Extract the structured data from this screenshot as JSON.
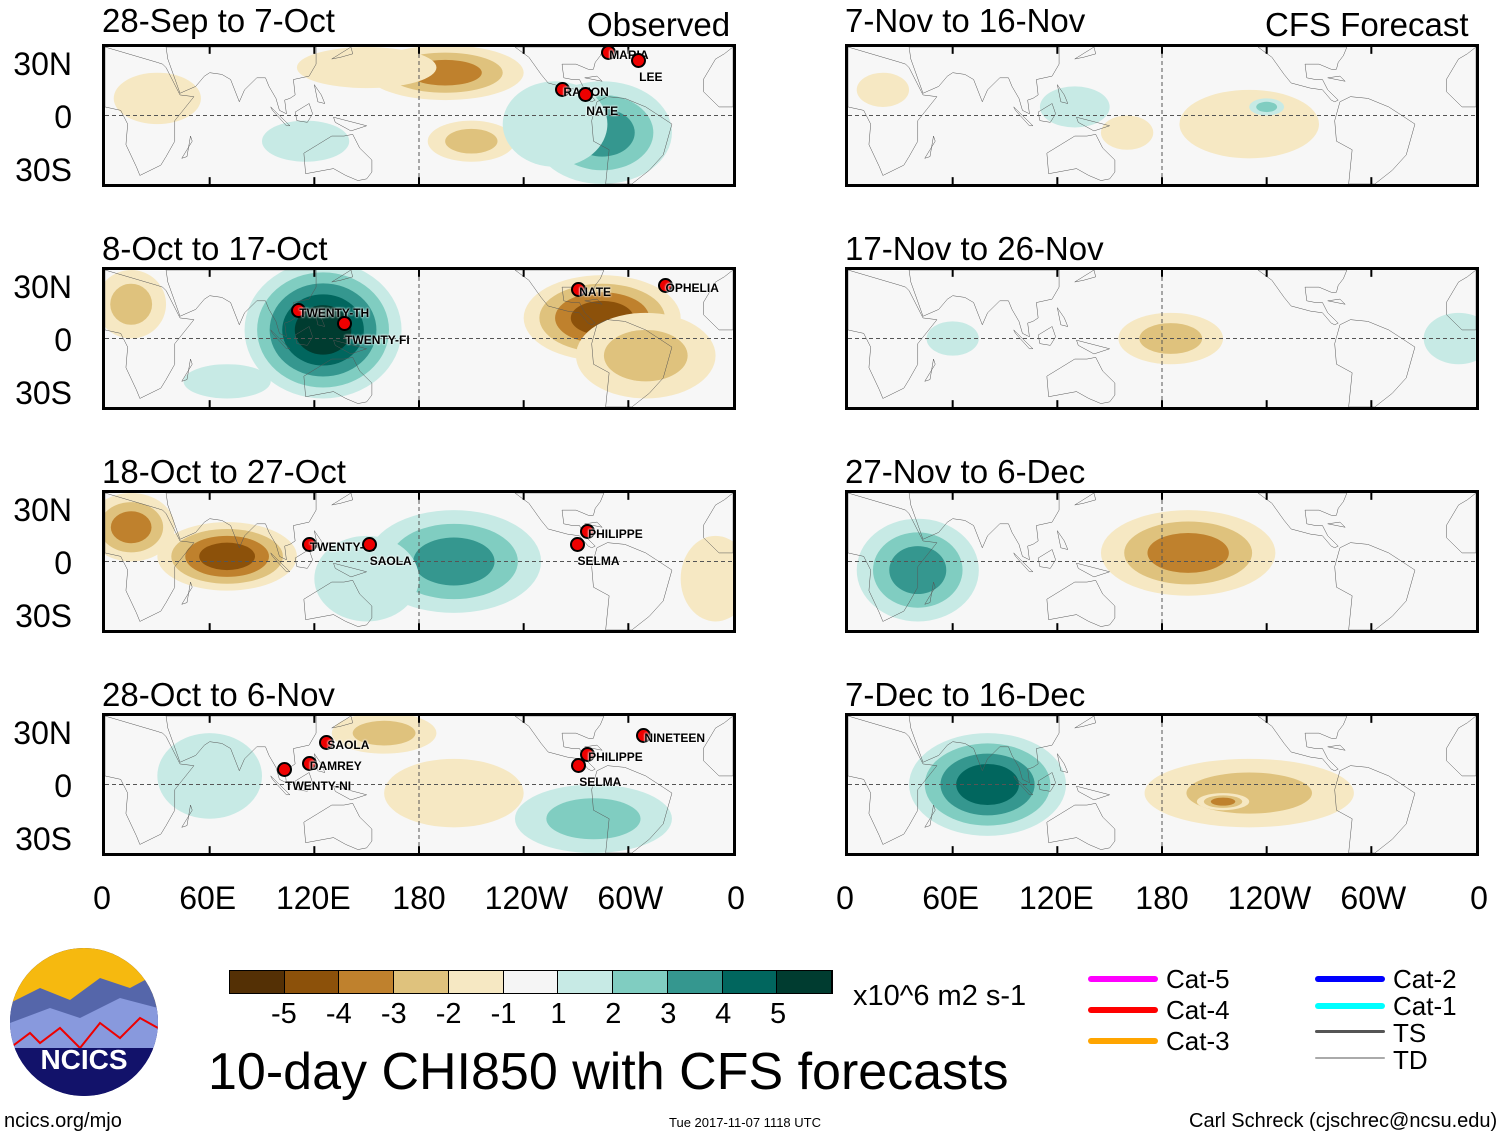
{
  "header": {
    "observed_label": "Observed",
    "forecast_label": "CFS Forecast"
  },
  "axes": {
    "lat_labels": [
      "30N",
      "0",
      "30S"
    ],
    "lon_labels": [
      "0",
      "60E",
      "120E",
      "180",
      "120W",
      "60W",
      "0"
    ]
  },
  "colorbar": {
    "colors": [
      "#543005",
      "#8c510a",
      "#bf812d",
      "#dfc27d",
      "#f6e8c3",
      "#f5f5f5",
      "#c7eae5",
      "#80cdc1",
      "#35978f",
      "#01665e",
      "#003c30"
    ],
    "labels": [
      "-5",
      "-4",
      "-3",
      "-2",
      "-1",
      "1",
      "2",
      "3",
      "4",
      "5"
    ],
    "units": "x10^6 m2 s-1"
  },
  "title": "10-day CHI850 with CFS forecasts",
  "footer": {
    "left": "ncics.org/mjo",
    "center": "Tue 2017-11-07 1118 UTC",
    "right": "Carl Schreck (cjschrec@ncsu.edu)"
  },
  "logo_text": "NCICS",
  "legend": [
    {
      "label": "Cat-5",
      "color": "#ff00ff"
    },
    {
      "label": "Cat-4",
      "color": "#ff0000"
    },
    {
      "label": "Cat-3",
      "color": "#ffa500"
    },
    {
      "label": "Cat-2",
      "color": "#0000ff"
    },
    {
      "label": "Cat-1",
      "color": "#00ffff"
    },
    {
      "label": "TS",
      "color": "#555555"
    },
    {
      "label": "TD",
      "color": "#aaaaaa"
    }
  ],
  "chart_data": [
    {
      "type": "heatmap",
      "title": "28-Sep to 7-Oct",
      "kind": "observed",
      "xlim": [
        0,
        360
      ],
      "ylim": [
        -40,
        40
      ],
      "anomalies": [
        {
          "lon": 195,
          "lat": 25,
          "value": -3,
          "rlon": 45,
          "rlat": 16
        },
        {
          "lon": 150,
          "lat": 28,
          "value": -1,
          "rlon": 40,
          "rlat": 12
        },
        {
          "lon": 30,
          "lat": 10,
          "value": -1,
          "rlon": 25,
          "rlat": 15
        },
        {
          "lon": 210,
          "lat": -15,
          "value": -2,
          "rlon": 25,
          "rlat": 12
        },
        {
          "lon": 285,
          "lat": -10,
          "value": 3,
          "rlon": 40,
          "rlat": 30
        },
        {
          "lon": 258,
          "lat": -5,
          "value": 1,
          "rlon": 30,
          "rlat": 25
        },
        {
          "lon": 115,
          "lat": -15,
          "value": 1,
          "rlon": 25,
          "rlat": 12
        }
      ],
      "storms": [
        {
          "name": "MARIA",
          "lon": 288,
          "lat": 33
        },
        {
          "name": "LEE",
          "lon": 305,
          "lat": 28
        },
        {
          "name": "RAMON",
          "lon": 262,
          "lat": 12
        },
        {
          "name": "NATE",
          "lon": 275,
          "lat": 9
        }
      ]
    },
    {
      "type": "heatmap",
      "title": "8-Oct to 17-Oct",
      "kind": "observed",
      "xlim": [
        0,
        360
      ],
      "ylim": [
        -40,
        40
      ],
      "anomalies": [
        {
          "lon": 125,
          "lat": 5,
          "value": 5,
          "rlon": 45,
          "rlat": 40
        },
        {
          "lon": 70,
          "lat": -25,
          "value": 1,
          "rlon": 25,
          "rlat": 10
        },
        {
          "lon": 285,
          "lat": 12,
          "value": -4,
          "rlon": 45,
          "rlat": 25
        },
        {
          "lon": 310,
          "lat": -10,
          "value": -2,
          "rlon": 40,
          "rlat": 25
        },
        {
          "lon": 15,
          "lat": 20,
          "value": -2,
          "rlon": 20,
          "rlat": 20
        }
      ],
      "storms": [
        {
          "name": "NATE",
          "lon": 271,
          "lat": 25
        },
        {
          "name": "OPHELIA",
          "lon": 320,
          "lat": 27
        },
        {
          "name": "TWENTY-TH",
          "lon": 112,
          "lat": 13
        },
        {
          "name": "TWENTY-FI",
          "lon": 138,
          "lat": 6
        }
      ]
    },
    {
      "type": "heatmap",
      "title": "18-Oct to 27-Oct",
      "kind": "observed",
      "xlim": [
        0,
        360
      ],
      "ylim": [
        -40,
        40
      ],
      "anomalies": [
        {
          "lon": 70,
          "lat": 3,
          "value": -4,
          "rlon": 40,
          "rlat": 20
        },
        {
          "lon": 15,
          "lat": 20,
          "value": -3,
          "rlon": 25,
          "rlat": 20
        },
        {
          "lon": 200,
          "lat": 0,
          "value": 3,
          "rlon": 50,
          "rlat": 30
        },
        {
          "lon": 150,
          "lat": -10,
          "value": 1,
          "rlon": 30,
          "rlat": 25
        },
        {
          "lon": 350,
          "lat": -10,
          "value": -1,
          "rlon": 20,
          "rlat": 25
        }
      ],
      "storms": [
        {
          "name": "TWENTY-SI",
          "lon": 118,
          "lat": 7
        },
        {
          "name": "SAOLA",
          "lon": 152,
          "lat": 7
        },
        {
          "name": "PHILIPPE",
          "lon": 276,
          "lat": 14
        },
        {
          "name": "SELMA",
          "lon": 270,
          "lat": 7
        }
      ]
    },
    {
      "type": "heatmap",
      "title": "28-Oct to 6-Nov",
      "kind": "observed",
      "xlim": [
        0,
        360
      ],
      "ylim": [
        -40,
        40
      ],
      "anomalies": [
        {
          "lon": 160,
          "lat": 30,
          "value": -2,
          "rlon": 30,
          "rlat": 12
        },
        {
          "lon": 280,
          "lat": -20,
          "value": 2,
          "rlon": 45,
          "rlat": 20
        },
        {
          "lon": 60,
          "lat": 5,
          "value": 1,
          "rlon": 30,
          "rlat": 25
        },
        {
          "lon": 200,
          "lat": -5,
          "value": -1,
          "rlon": 40,
          "rlat": 20
        }
      ],
      "storms": [
        {
          "name": "SAOLA",
          "lon": 128,
          "lat": 21
        },
        {
          "name": "DAMREY",
          "lon": 118,
          "lat": 9
        },
        {
          "name": "TWENTY-NI",
          "lon": 104,
          "lat": 6
        },
        {
          "name": "PHILIPPE",
          "lon": 276,
          "lat": 14
        },
        {
          "name": "SELMA",
          "lon": 271,
          "lat": 8
        },
        {
          "name": "NINETEEN",
          "lon": 308,
          "lat": 25
        }
      ]
    },
    {
      "type": "heatmap",
      "title": "7-Nov to 16-Nov",
      "kind": "forecast",
      "xlim": [
        0,
        360
      ],
      "ylim": [
        -40,
        40
      ],
      "anomalies": [
        {
          "lon": 20,
          "lat": 15,
          "value": -1,
          "rlon": 15,
          "rlat": 10
        },
        {
          "lon": 160,
          "lat": -10,
          "value": -1,
          "rlon": 15,
          "rlat": 10
        },
        {
          "lon": 230,
          "lat": -5,
          "value": -1,
          "rlon": 40,
          "rlat": 20
        },
        {
          "lon": 130,
          "lat": 5,
          "value": 1,
          "rlon": 20,
          "rlat": 12
        },
        {
          "lon": 240,
          "lat": 5,
          "value": 2,
          "rlon": 10,
          "rlat": 5
        }
      ],
      "storms": []
    },
    {
      "type": "heatmap",
      "title": "17-Nov to 26-Nov",
      "kind": "forecast",
      "xlim": [
        0,
        360
      ],
      "ylim": [
        -40,
        40
      ],
      "anomalies": [
        {
          "lon": 185,
          "lat": 0,
          "value": -2,
          "rlon": 30,
          "rlat": 15
        },
        {
          "lon": 60,
          "lat": 0,
          "value": 1,
          "rlon": 15,
          "rlat": 10
        },
        {
          "lon": 350,
          "lat": 0,
          "value": 1,
          "rlon": 20,
          "rlat": 15
        }
      ],
      "storms": []
    },
    {
      "type": "heatmap",
      "title": "27-Nov to 6-Dec",
      "kind": "forecast",
      "xlim": [
        0,
        360
      ],
      "ylim": [
        -40,
        40
      ],
      "anomalies": [
        {
          "lon": 195,
          "lat": 5,
          "value": -3,
          "rlon": 50,
          "rlat": 25
        },
        {
          "lon": 40,
          "lat": -5,
          "value": 3,
          "rlon": 35,
          "rlat": 30
        }
      ],
      "storms": []
    },
    {
      "type": "heatmap",
      "title": "7-Dec to 16-Dec",
      "kind": "forecast",
      "xlim": [
        0,
        360
      ],
      "ylim": [
        -40,
        40
      ],
      "anomalies": [
        {
          "lon": 80,
          "lat": 0,
          "value": 4,
          "rlon": 45,
          "rlat": 30
        },
        {
          "lon": 230,
          "lat": -5,
          "value": -2,
          "rlon": 60,
          "rlat": 20
        },
        {
          "lon": 215,
          "lat": -10,
          "value": -3,
          "rlon": 15,
          "rlat": 5
        }
      ],
      "storms": []
    }
  ]
}
